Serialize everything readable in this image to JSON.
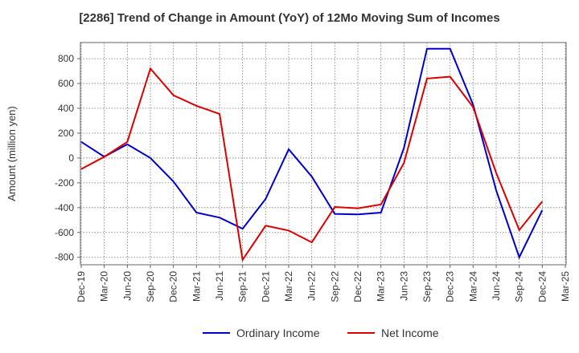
{
  "chart_data": {
    "type": "line",
    "title": "[2286]  Trend of Change in Amount (YoY) of 12Mo Moving Sum of Incomes",
    "xlabel": "",
    "ylabel": "Amount (million yen)",
    "categories": [
      "Dec-19",
      "Mar-20",
      "Jun-20",
      "Sep-20",
      "Dec-20",
      "Mar-21",
      "Jun-21",
      "Sep-21",
      "Dec-21",
      "Mar-22",
      "Jun-22",
      "Sep-22",
      "Dec-22",
      "Mar-23",
      "Jun-23",
      "Sep-23",
      "Dec-23",
      "Mar-24",
      "Jun-24",
      "Sep-24",
      "Dec-24",
      "Mar-25"
    ],
    "ylim": [
      -860,
      930
    ],
    "yticks": [
      -800,
      -600,
      -400,
      -200,
      0,
      200,
      400,
      600,
      800
    ],
    "grid": true,
    "legend_position": "bottom",
    "series": [
      {
        "name": "Ordinary Income",
        "color": "#0000cc",
        "values": [
          130,
          10,
          110,
          0,
          -190,
          -440,
          -480,
          -570,
          -330,
          70,
          -150,
          -450,
          -455,
          -440,
          80,
          880,
          880,
          430,
          -260,
          -800,
          -420,
          null
        ]
      },
      {
        "name": "Net Income",
        "color": "#dd0000",
        "values": [
          -90,
          10,
          130,
          720,
          505,
          420,
          355,
          -820,
          -545,
          -585,
          -680,
          -395,
          -405,
          -375,
          -40,
          640,
          655,
          410,
          -120,
          -580,
          -350,
          null
        ]
      }
    ]
  }
}
